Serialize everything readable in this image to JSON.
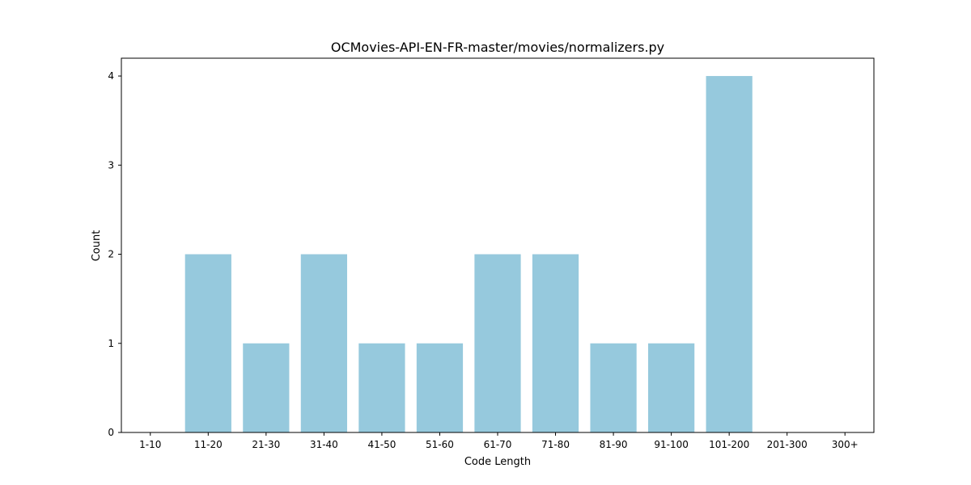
{
  "chart_data": {
    "type": "bar",
    "title": "OCMovies-API-EN-FR-master/movies/normalizers.py",
    "xlabel": "Code Length",
    "ylabel": "Count",
    "categories": [
      "1-10",
      "11-20",
      "21-30",
      "31-40",
      "41-50",
      "51-60",
      "61-70",
      "71-80",
      "81-90",
      "91-100",
      "101-200",
      "201-300",
      "300+"
    ],
    "values": [
      0,
      2,
      1,
      2,
      1,
      1,
      2,
      2,
      1,
      1,
      4,
      0,
      0
    ],
    "ylim": [
      0,
      4.2
    ],
    "yticks": [
      0,
      1,
      2,
      3,
      4
    ],
    "grid": false,
    "bar_color": "#96c9dd"
  }
}
